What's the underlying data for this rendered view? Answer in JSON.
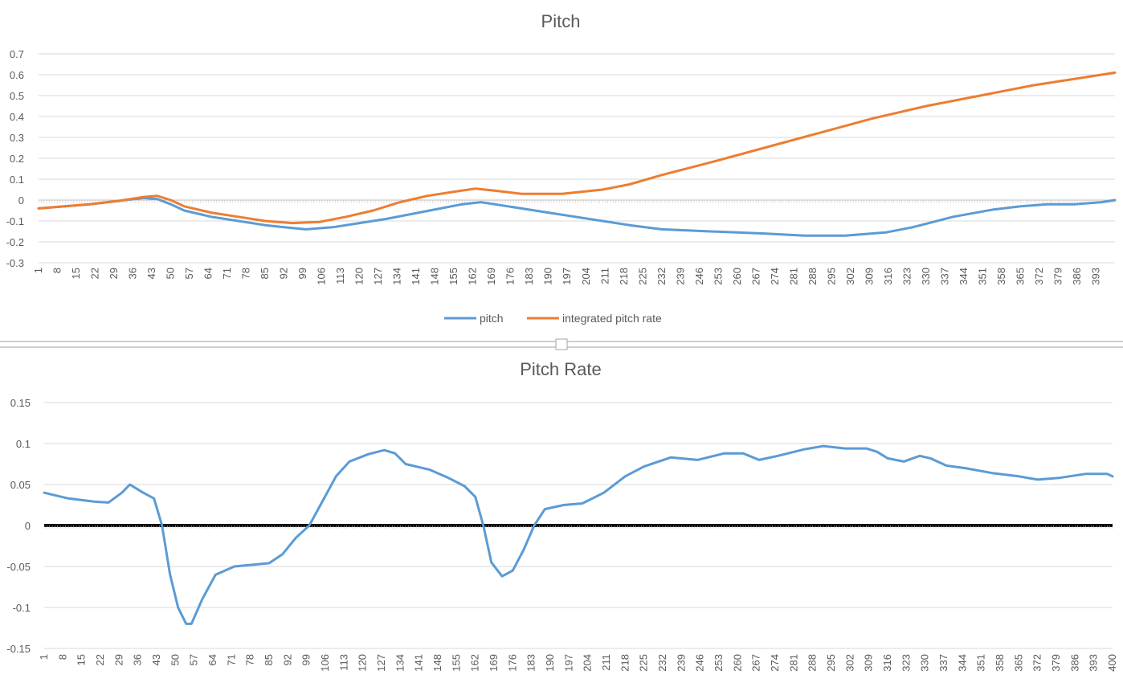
{
  "chart_data": [
    {
      "type": "line",
      "title": "Pitch",
      "xlabel": "",
      "ylabel": "",
      "x_range": [
        1,
        400
      ],
      "ylim": [
        -0.3,
        0.7
      ],
      "y_ticks": [
        -0.3,
        -0.2,
        -0.1,
        0,
        0.1,
        0.2,
        0.3,
        0.4,
        0.5,
        0.6,
        0.7
      ],
      "y_tick_labels": [
        "-0.3",
        "-0.2",
        "-0.1",
        "0",
        "0.1",
        "0.2",
        "0.3",
        "0.4",
        "0.5",
        "0.6",
        "0.7"
      ],
      "x_tick_labels": [
        "1",
        "8",
        "15",
        "22",
        "29",
        "36",
        "43",
        "50",
        "57",
        "64",
        "71",
        "78",
        "85",
        "92",
        "99",
        "106",
        "113",
        "120",
        "127",
        "134",
        "141",
        "148",
        "155",
        "162",
        "169",
        "176",
        "183",
        "190",
        "197",
        "204",
        "211",
        "218",
        "225",
        "232",
        "239",
        "246",
        "253",
        "260",
        "267",
        "274",
        "281",
        "288",
        "295",
        "302",
        "309",
        "316",
        "323",
        "330",
        "337",
        "344",
        "351",
        "358",
        "365",
        "372",
        "379",
        "386",
        "393"
      ],
      "grid": true,
      "legend_position": "bottom",
      "series": [
        {
          "name": "pitch",
          "color": "#5b9bd5",
          "points": [
            [
              1,
              -0.04
            ],
            [
              20,
              -0.02
            ],
            [
              30,
              -0.005
            ],
            [
              40,
              0.01
            ],
            [
              45,
              0.005
            ],
            [
              50,
              -0.02
            ],
            [
              55,
              -0.05
            ],
            [
              65,
              -0.08
            ],
            [
              75,
              -0.1
            ],
            [
              85,
              -0.12
            ],
            [
              92,
              -0.13
            ],
            [
              100,
              -0.14
            ],
            [
              110,
              -0.13
            ],
            [
              120,
              -0.11
            ],
            [
              130,
              -0.09
            ],
            [
              140,
              -0.065
            ],
            [
              150,
              -0.04
            ],
            [
              158,
              -0.02
            ],
            [
              165,
              -0.01
            ],
            [
              170,
              -0.02
            ],
            [
              180,
              -0.04
            ],
            [
              190,
              -0.06
            ],
            [
              200,
              -0.08
            ],
            [
              210,
              -0.1
            ],
            [
              220,
              -0.12
            ],
            [
              232,
              -0.14
            ],
            [
              250,
              -0.15
            ],
            [
              270,
              -0.16
            ],
            [
              285,
              -0.17
            ],
            [
              300,
              -0.17
            ],
            [
              315,
              -0.155
            ],
            [
              325,
              -0.13
            ],
            [
              340,
              -0.08
            ],
            [
              355,
              -0.045
            ],
            [
              365,
              -0.03
            ],
            [
              375,
              -0.02
            ],
            [
              385,
              -0.02
            ],
            [
              395,
              -0.01
            ],
            [
              400,
              0.0
            ]
          ]
        },
        {
          "name": "integrated pitch rate",
          "color": "#ed7d31",
          "points": [
            [
              1,
              -0.04
            ],
            [
              20,
              -0.02
            ],
            [
              30,
              -0.005
            ],
            [
              40,
              0.015
            ],
            [
              45,
              0.02
            ],
            [
              50,
              0.0
            ],
            [
              55,
              -0.03
            ],
            [
              65,
              -0.06
            ],
            [
              75,
              -0.08
            ],
            [
              85,
              -0.1
            ],
            [
              95,
              -0.11
            ],
            [
              105,
              -0.105
            ],
            [
              115,
              -0.08
            ],
            [
              125,
              -0.05
            ],
            [
              135,
              -0.01
            ],
            [
              145,
              0.02
            ],
            [
              155,
              0.04
            ],
            [
              163,
              0.055
            ],
            [
              170,
              0.045
            ],
            [
              180,
              0.03
            ],
            [
              195,
              0.03
            ],
            [
              210,
              0.05
            ],
            [
              220,
              0.075
            ],
            [
              232,
              0.12
            ],
            [
              250,
              0.18
            ],
            [
              270,
              0.25
            ],
            [
              290,
              0.32
            ],
            [
              310,
              0.39
            ],
            [
              330,
              0.45
            ],
            [
              350,
              0.5
            ],
            [
              370,
              0.55
            ],
            [
              390,
              0.59
            ],
            [
              400,
              0.61
            ]
          ]
        }
      ]
    },
    {
      "type": "line",
      "title": "Pitch Rate",
      "xlabel": "",
      "ylabel": "",
      "x_range": [
        1,
        400
      ],
      "ylim": [
        -0.15,
        0.15
      ],
      "y_ticks": [
        -0.15,
        -0.1,
        -0.05,
        0,
        0.05,
        0.1,
        0.15
      ],
      "y_tick_labels": [
        "-0.15",
        "-0.1",
        "-0.05",
        "0",
        "0.05",
        "0.1",
        "0.15"
      ],
      "x_tick_labels": [
        "1",
        "8",
        "15",
        "22",
        "29",
        "36",
        "43",
        "50",
        "57",
        "64",
        "71",
        "78",
        "85",
        "92",
        "99",
        "106",
        "113",
        "120",
        "127",
        "134",
        "141",
        "148",
        "155",
        "162",
        "169",
        "176",
        "183",
        "190",
        "197",
        "204",
        "211",
        "218",
        "225",
        "232",
        "239",
        "246",
        "253",
        "260",
        "267",
        "274",
        "281",
        "288",
        "295",
        "302",
        "309",
        "316",
        "323",
        "330",
        "337",
        "344",
        "351",
        "358",
        "365",
        "372",
        "379",
        "386",
        "393",
        "400"
      ],
      "grid": true,
      "baseline_color": "#000000",
      "series": [
        {
          "color": "#5b9bd5",
          "points": [
            [
              1,
              0.04
            ],
            [
              10,
              0.033
            ],
            [
              20,
              0.029
            ],
            [
              25,
              0.028
            ],
            [
              30,
              0.04
            ],
            [
              33,
              0.05
            ],
            [
              38,
              0.04
            ],
            [
              42,
              0.033
            ],
            [
              45,
              0.0
            ],
            [
              48,
              -0.06
            ],
            [
              51,
              -0.1
            ],
            [
              54,
              -0.12
            ],
            [
              56,
              -0.12
            ],
            [
              60,
              -0.09
            ],
            [
              65,
              -0.06
            ],
            [
              72,
              -0.05
            ],
            [
              85,
              -0.046
            ],
            [
              90,
              -0.035
            ],
            [
              95,
              -0.015
            ],
            [
              100,
              0.0
            ],
            [
              105,
              0.03
            ],
            [
              110,
              0.06
            ],
            [
              115,
              0.078
            ],
            [
              122,
              0.087
            ],
            [
              128,
              0.092
            ],
            [
              132,
              0.088
            ],
            [
              136,
              0.075
            ],
            [
              145,
              0.068
            ],
            [
              152,
              0.058
            ],
            [
              158,
              0.048
            ],
            [
              162,
              0.035
            ],
            [
              165,
              0.0
            ],
            [
              168,
              -0.045
            ],
            [
              172,
              -0.062
            ],
            [
              176,
              -0.055
            ],
            [
              180,
              -0.03
            ],
            [
              184,
              0.0
            ],
            [
              188,
              0.02
            ],
            [
              195,
              0.025
            ],
            [
              202,
              0.027
            ],
            [
              210,
              0.04
            ],
            [
              218,
              0.06
            ],
            [
              225,
              0.072
            ],
            [
              235,
              0.083
            ],
            [
              245,
              0.08
            ],
            [
              255,
              0.088
            ],
            [
              262,
              0.088
            ],
            [
              268,
              0.08
            ],
            [
              275,
              0.085
            ],
            [
              285,
              0.093
            ],
            [
              292,
              0.097
            ],
            [
              300,
              0.094
            ],
            [
              308,
              0.094
            ],
            [
              312,
              0.09
            ],
            [
              316,
              0.082
            ],
            [
              322,
              0.078
            ],
            [
              328,
              0.085
            ],
            [
              332,
              0.082
            ],
            [
              338,
              0.073
            ],
            [
              345,
              0.07
            ],
            [
              355,
              0.064
            ],
            [
              365,
              0.06
            ],
            [
              372,
              0.056
            ],
            [
              380,
              0.058
            ],
            [
              390,
              0.063
            ],
            [
              398,
              0.063
            ],
            [
              400,
              0.06
            ]
          ]
        }
      ]
    }
  ]
}
